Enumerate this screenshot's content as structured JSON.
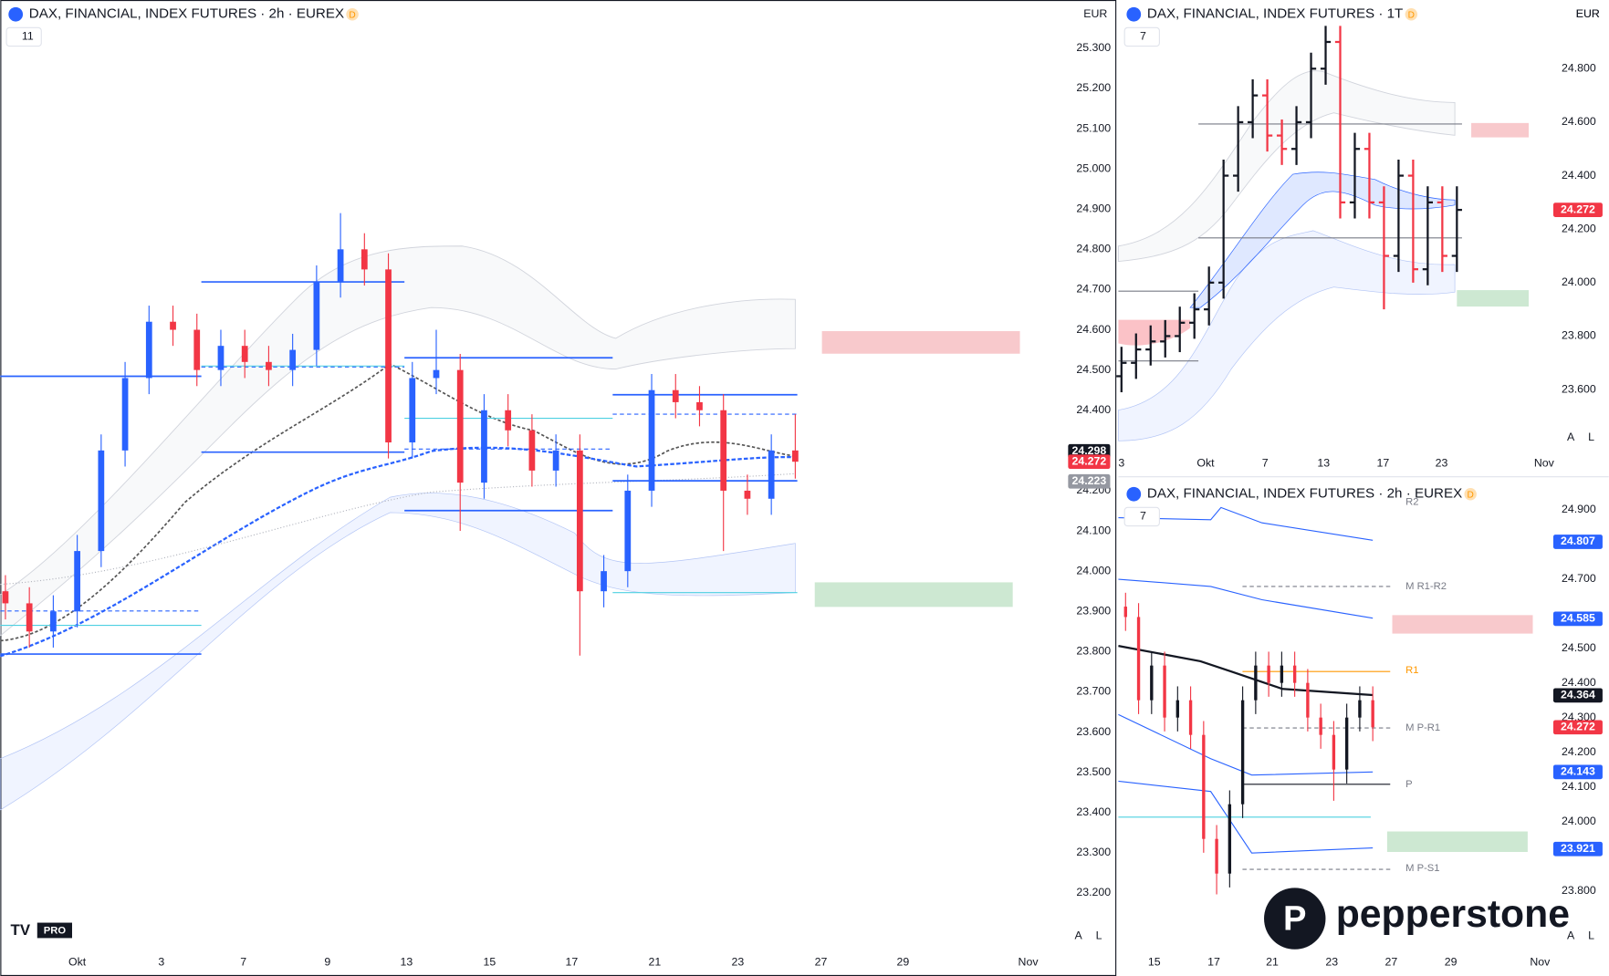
{
  "main_chart": {
    "title": "DAX, FINANCIAL, INDEX FUTURES · 2h · EUREX",
    "source_badge": "D",
    "currency": "EUR",
    "indicator_count": "11",
    "buttons": [
      "A",
      "L"
    ],
    "yticks": [
      {
        "value": 25300,
        "label": "25.300"
      },
      {
        "value": 25200,
        "label": "25.200"
      },
      {
        "value": 25100,
        "label": "25.100"
      },
      {
        "value": 25000,
        "label": "25.000"
      },
      {
        "value": 24900,
        "label": "24.900"
      },
      {
        "value": 24800,
        "label": "24.800"
      },
      {
        "value": 24700,
        "label": "24.700"
      },
      {
        "value": 24600,
        "label": "24.600"
      },
      {
        "value": 24500,
        "label": "24.500"
      },
      {
        "value": 24400,
        "label": "24.400"
      },
      {
        "value": 24200,
        "label": "24.200"
      },
      {
        "value": 24100,
        "label": "24.100"
      },
      {
        "value": 24000,
        "label": "24.000"
      },
      {
        "value": 23900,
        "label": "23.900"
      },
      {
        "value": 23800,
        "label": "23.800"
      },
      {
        "value": 23700,
        "label": "23.700"
      },
      {
        "value": 23600,
        "label": "23.600"
      },
      {
        "value": 23500,
        "label": "23.500"
      },
      {
        "value": 23400,
        "label": "23.400"
      },
      {
        "value": 23300,
        "label": "23.300"
      },
      {
        "value": 23200,
        "label": "23.200"
      }
    ],
    "xlabels": [
      "Okt",
      "3",
      "7",
      "9",
      "13",
      "15",
      "17",
      "21",
      "23",
      "27",
      "29",
      "Nov"
    ],
    "price_tags": [
      {
        "value": 24298,
        "label": "24.298",
        "color": "#131722"
      },
      {
        "value": 24272,
        "label": "24.272",
        "color": "#f23645"
      },
      {
        "value": 24223,
        "label": "24.223",
        "color": "#9598a1"
      }
    ],
    "candles": {
      "open": [
        23950,
        23920,
        23850,
        23900,
        24050,
        24300,
        24480,
        24620,
        24600,
        24500,
        24560,
        24520,
        24500,
        24550,
        24720,
        24800,
        24750,
        24320,
        24480,
        24500,
        24220,
        24400,
        24350,
        24250,
        24300,
        23950,
        24000,
        24200,
        24450,
        24420,
        24400,
        24200,
        24180,
        24300
      ],
      "high": [
        23990,
        23960,
        23940,
        24090,
        24340,
        24520,
        24660,
        24660,
        24640,
        24600,
        24600,
        24560,
        24590,
        24760,
        24890,
        24840,
        24790,
        24520,
        24600,
        24540,
        24440,
        24440,
        24390,
        24340,
        24340,
        24040,
        24240,
        24490,
        24490,
        24460,
        24440,
        24240,
        24340,
        24390
      ],
      "low": [
        23880,
        23810,
        23810,
        23860,
        24010,
        24260,
        24440,
        24560,
        24460,
        24460,
        24480,
        24460,
        24460,
        24510,
        24680,
        24710,
        24280,
        24280,
        24440,
        24100,
        24180,
        24310,
        24210,
        24210,
        23790,
        23910,
        23960,
        24160,
        24380,
        24360,
        24050,
        24140,
        24140,
        24230
      ],
      "close": [
        23920,
        23850,
        23900,
        24050,
        24300,
        24480,
        24620,
        24600,
        24500,
        24560,
        24520,
        24500,
        24550,
        24720,
        24800,
        24750,
        24320,
        24480,
        24500,
        24220,
        24400,
        24350,
        24250,
        24300,
        23950,
        24000,
        24200,
        24450,
        24420,
        24400,
        24200,
        24180,
        24300,
        24272
      ]
    }
  },
  "daily_chart": {
    "title": "DAX, FINANCIAL, INDEX FUTURES · 1T",
    "source_badge": "D",
    "currency": "EUR",
    "indicator_count": "7",
    "buttons": [
      "A",
      "L"
    ],
    "yticks": [
      {
        "value": 24800,
        "label": "24.800"
      },
      {
        "value": 24600,
        "label": "24.600"
      },
      {
        "value": 24400,
        "label": "24.400"
      },
      {
        "value": 24200,
        "label": "24.200"
      },
      {
        "value": 24000,
        "label": "24.000"
      },
      {
        "value": 23800,
        "label": "23.800"
      },
      {
        "value": 23600,
        "label": "23.600"
      }
    ],
    "xlabels": [
      "3",
      "Okt",
      "7",
      "13",
      "17",
      "23",
      "Nov"
    ],
    "price_tags": [
      {
        "value": 24272,
        "label": "24.272",
        "color": "#f23645"
      }
    ],
    "candles": {
      "open": [
        23650,
        23700,
        23750,
        23780,
        23800,
        23850,
        23900,
        24000,
        24400,
        24600,
        24700,
        24550,
        24500,
        24600,
        24800,
        24900,
        24300,
        24500,
        24300,
        24100,
        24400,
        24050,
        24300,
        24100
      ],
      "high": [
        23760,
        23810,
        23840,
        23860,
        23910,
        23960,
        24060,
        24460,
        24660,
        24760,
        24760,
        24610,
        24660,
        24860,
        24960,
        24960,
        24560,
        24560,
        24360,
        24460,
        24460,
        24360,
        24360,
        24360
      ],
      "low": [
        23590,
        23640,
        23690,
        23720,
        23740,
        23790,
        23840,
        23940,
        24340,
        24540,
        24490,
        24440,
        24440,
        24540,
        24740,
        24240,
        24240,
        24240,
        23900,
        24040,
        24000,
        23990,
        24040,
        24040
      ],
      "close": [
        23700,
        23750,
        23780,
        23800,
        23850,
        23900,
        24000,
        24400,
        24600,
        24700,
        24550,
        24500,
        24600,
        24800,
        24900,
        24300,
        24500,
        24300,
        24100,
        24400,
        24050,
        24300,
        24100,
        24272
      ]
    }
  },
  "pivot_chart": {
    "title": "DAX, FINANCIAL, INDEX FUTURES · 2h · EUREX",
    "source_badge": "D",
    "currency": "EUR",
    "indicator_count": "7",
    "buttons": [
      "A",
      "L"
    ],
    "yticks": [
      {
        "value": 24900,
        "label": "24.900"
      },
      {
        "value": 24700,
        "label": "24.700"
      },
      {
        "value": 24500,
        "label": "24.500"
      },
      {
        "value": 24400,
        "label": "24.400"
      },
      {
        "value": 24300,
        "label": "24.300"
      },
      {
        "value": 24200,
        "label": "24.200"
      },
      {
        "value": 24100,
        "label": "24.100"
      },
      {
        "value": 24000,
        "label": "24.000"
      },
      {
        "value": 23800,
        "label": "23.800"
      }
    ],
    "xlabels": [
      "15",
      "17",
      "21",
      "23",
      "27",
      "29",
      "Nov"
    ],
    "price_tags": [
      {
        "value": 24807,
        "label": "24.807",
        "color": "#2962ff"
      },
      {
        "value": 24585,
        "label": "24.585",
        "color": "#2962ff"
      },
      {
        "value": 24364,
        "label": "24.364",
        "color": "#131722"
      },
      {
        "value": 24272,
        "label": "24.272",
        "color": "#f23645"
      },
      {
        "value": 24143,
        "label": "24.143",
        "color": "#2962ff"
      },
      {
        "value": 23921,
        "label": "23.921",
        "color": "#2962ff"
      }
    ],
    "pivot_labels": [
      "R2",
      "M R1-R2",
      "R1",
      "M P-R1",
      "P",
      "M P-S1"
    ],
    "candles": {
      "open": [
        24620,
        24590,
        24350,
        24450,
        24300,
        24350,
        24250,
        23950,
        23850,
        24050,
        24350,
        24450,
        24400,
        24450,
        24400,
        24300,
        24250,
        24150,
        24300,
        24350
      ],
      "high": [
        24660,
        24630,
        24490,
        24490,
        24390,
        24390,
        24290,
        23990,
        24090,
        24390,
        24490,
        24490,
        24490,
        24490,
        24440,
        24340,
        24290,
        24340,
        24390,
        24390
      ],
      "low": [
        24550,
        24310,
        24310,
        24260,
        24260,
        24210,
        23910,
        23790,
        23810,
        24010,
        24310,
        24360,
        24360,
        24360,
        24260,
        24210,
        24060,
        24110,
        24260,
        24232
      ],
      "close": [
        24590,
        24350,
        24450,
        24300,
        24350,
        24250,
        23950,
        23850,
        24050,
        24350,
        24450,
        24400,
        24450,
        24400,
        24300,
        24250,
        24150,
        24300,
        24350,
        24272
      ]
    }
  },
  "branding": {
    "broker": "pepperstone",
    "platform": "PRO"
  }
}
